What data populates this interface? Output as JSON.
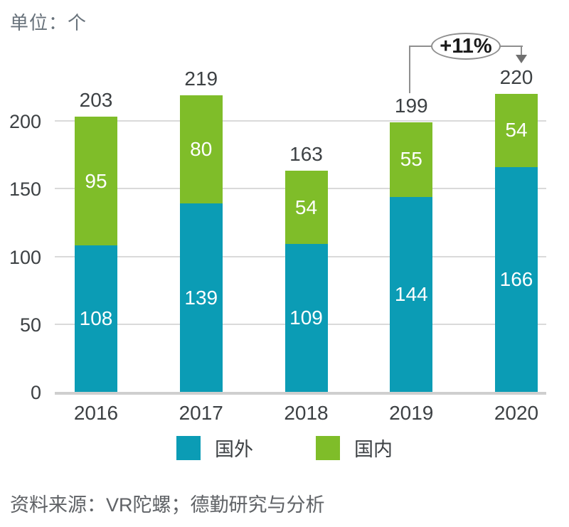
{
  "unit_label": "单位：个",
  "source": "资料来源：VR陀螺；德勤研究与分析",
  "colors": {
    "foreign": "#0b9cb5",
    "domestic": "#7fbd29",
    "gridline": "#dadada",
    "baseline": "#cfcfcf",
    "axis_text": "#3d4144",
    "annotation_line": "#8f8f8f"
  },
  "chart_data": {
    "type": "bar",
    "stacked": true,
    "title": "",
    "unit": "个",
    "categories": [
      "2016",
      "2017",
      "2018",
      "2019",
      "2020"
    ],
    "series": [
      {
        "name": "国外",
        "color": "#0b9cb5",
        "values": [
          108,
          139,
          109,
          144,
          166
        ]
      },
      {
        "name": "国内",
        "color": "#7fbd29",
        "values": [
          95,
          80,
          54,
          55,
          54
        ]
      }
    ],
    "totals": [
      203,
      219,
      163,
      199,
      220
    ],
    "y_ticks": [
      0,
      50,
      100,
      150,
      200
    ],
    "ylim": [
      0,
      230
    ],
    "grid": true,
    "legend_position": "bottom",
    "annotation": {
      "text": "+11%",
      "from": "2019",
      "to": "2020"
    }
  }
}
